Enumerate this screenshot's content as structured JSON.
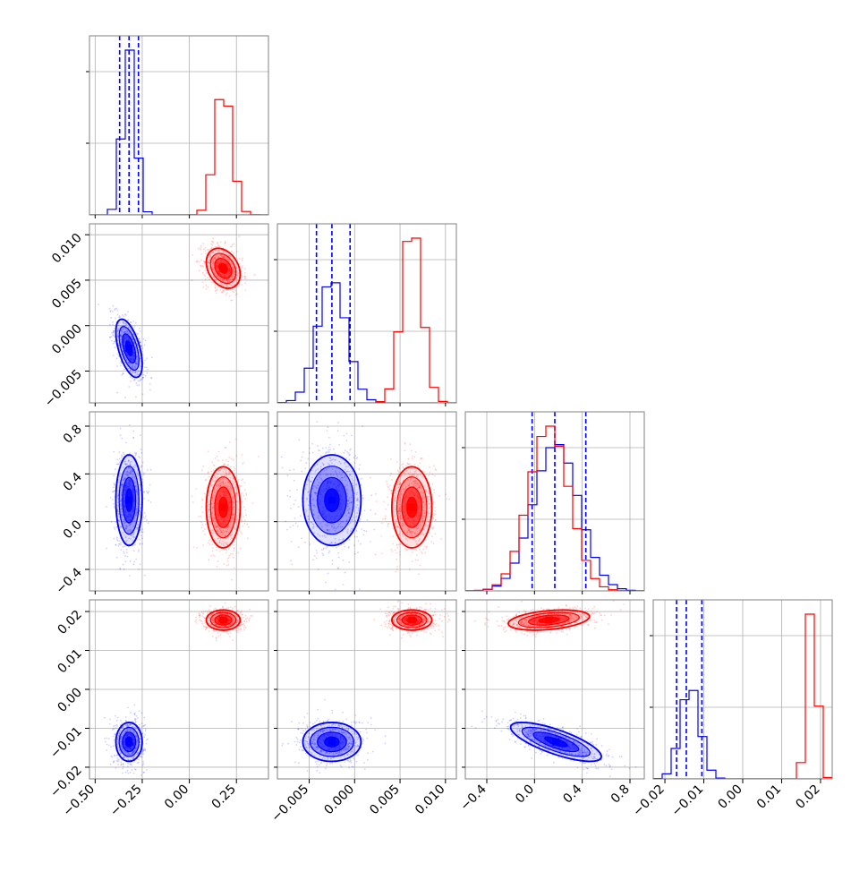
{
  "chart_data": {
    "type": "corner",
    "params": 4,
    "ranges": [
      [
        -0.53,
        0.42
      ],
      [
        -0.0085,
        0.0112
      ],
      [
        -0.58,
        0.92
      ],
      [
        -0.023,
        0.023
      ]
    ],
    "ticks": [
      {
        "values": [
          -0.5,
          -0.25,
          0.0,
          0.25
        ],
        "labels": [
          "−0.50",
          "−0.25",
          "0.00",
          "0.25"
        ]
      },
      {
        "values": [
          -0.005,
          0.0,
          0.005,
          0.01
        ],
        "labels": [
          "−0.005",
          "0.000",
          "0.005",
          "0.010"
        ]
      },
      {
        "values": [
          -0.4,
          0.0,
          0.4,
          0.8
        ],
        "labels": [
          "−0.4",
          "0.0",
          "0.4",
          "0.8"
        ]
      },
      {
        "values": [
          -0.02,
          -0.01,
          0.0,
          0.01,
          0.02
        ],
        "labels": [
          "−0.02",
          "−0.01",
          "0.00",
          "0.01",
          "0.02"
        ]
      }
    ],
    "colors": {
      "blue": "#0000ff",
      "red": "#ff0000",
      "grid": "#b0b0b0",
      "frame": "#808080"
    },
    "series": [
      {
        "color": "blue",
        "mean": [
          -0.32,
          -0.0025,
          0.18,
          -0.0135
        ],
        "sd": [
          0.035,
          0.0016,
          0.19,
          0.0025
        ],
        "corr": [
          [
            1,
            -0.55,
            0,
            0
          ],
          [
            -0.55,
            1,
            0,
            0
          ],
          [
            0,
            0,
            1,
            -0.75
          ],
          [
            0,
            0,
            -0.75,
            1
          ]
        ],
        "quantiles": [
          [
            -0.37,
            -0.32,
            -0.27
          ],
          [
            -0.0042,
            -0.0025,
            -0.0005
          ],
          [
            -0.02,
            0.17,
            0.43
          ],
          [
            -0.017,
            -0.0145,
            -0.0105
          ]
        ]
      },
      {
        "color": "red",
        "mean": [
          0.18,
          0.0063,
          0.12,
          0.0178
        ],
        "sd": [
          0.045,
          0.0011,
          0.17,
          0.0013
        ],
        "corr": [
          [
            1,
            -0.3,
            0,
            0
          ],
          [
            -0.3,
            1,
            0,
            0
          ],
          [
            0,
            0,
            1,
            0.35
          ],
          [
            0,
            0,
            0.35,
            1
          ]
        ],
        "quantiles": []
      }
    ]
  }
}
